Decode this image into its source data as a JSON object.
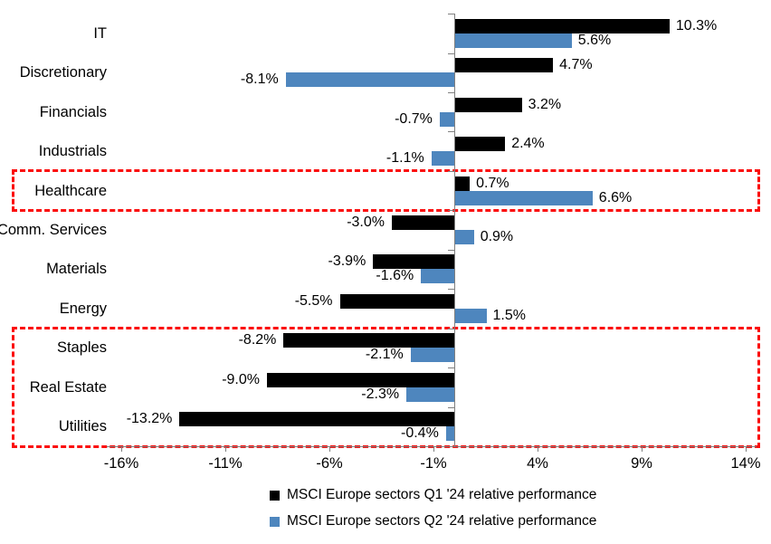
{
  "chart_data": {
    "type": "bar",
    "orientation": "horizontal",
    "title": "",
    "categories": [
      "IT",
      "Discretionary",
      "Financials",
      "Industrials",
      "Healthcare",
      "Comm. Services",
      "Materials",
      "Energy",
      "Staples",
      "Real Estate",
      "Utilities"
    ],
    "series": [
      {
        "name": "MSCI Europe sectors Q1 '24 relative performance",
        "color": "#000000",
        "values": [
          10.3,
          4.7,
          3.2,
          2.4,
          0.7,
          -3.0,
          -3.9,
          -5.5,
          -8.2,
          -9.0,
          -13.2
        ],
        "value_labels": [
          "10.3%",
          "4.7%",
          "3.2%",
          "2.4%",
          "0.7%",
          "-3.0%",
          "-3.9%",
          "-5.5%",
          "-8.2%",
          "-9.0%",
          "-13.2%"
        ]
      },
      {
        "name": "MSCI Europe sectors Q2 '24 relative performance",
        "color": "#4E86BE",
        "values": [
          5.6,
          -8.1,
          -0.7,
          -1.1,
          6.6,
          0.9,
          -1.6,
          1.5,
          -2.1,
          -2.3,
          -0.4
        ],
        "value_labels": [
          "5.6%",
          "-8.1%",
          "-0.7%",
          "-1.1%",
          "6.6%",
          "0.9%",
          "-1.6%",
          "1.5%",
          "-2.1%",
          "-2.3%",
          "-0.4%"
        ]
      }
    ],
    "x_ticks": {
      "values": [
        -16,
        -11,
        -6,
        -1,
        4,
        9,
        14
      ],
      "labels": [
        "-16%",
        "-11%",
        "-6%",
        "-1%",
        "4%",
        "9%",
        "14%"
      ]
    },
    "xlim": [
      -16.7,
      14.5
    ],
    "grid": false,
    "legend_position": "bottom",
    "axis_color": "#808080",
    "highlight_color": "#FB0D0D",
    "highlights": [
      {
        "sectors": [
          "Healthcare"
        ]
      },
      {
        "sectors": [
          "Staples",
          "Real Estate",
          "Utilities"
        ]
      }
    ]
  }
}
